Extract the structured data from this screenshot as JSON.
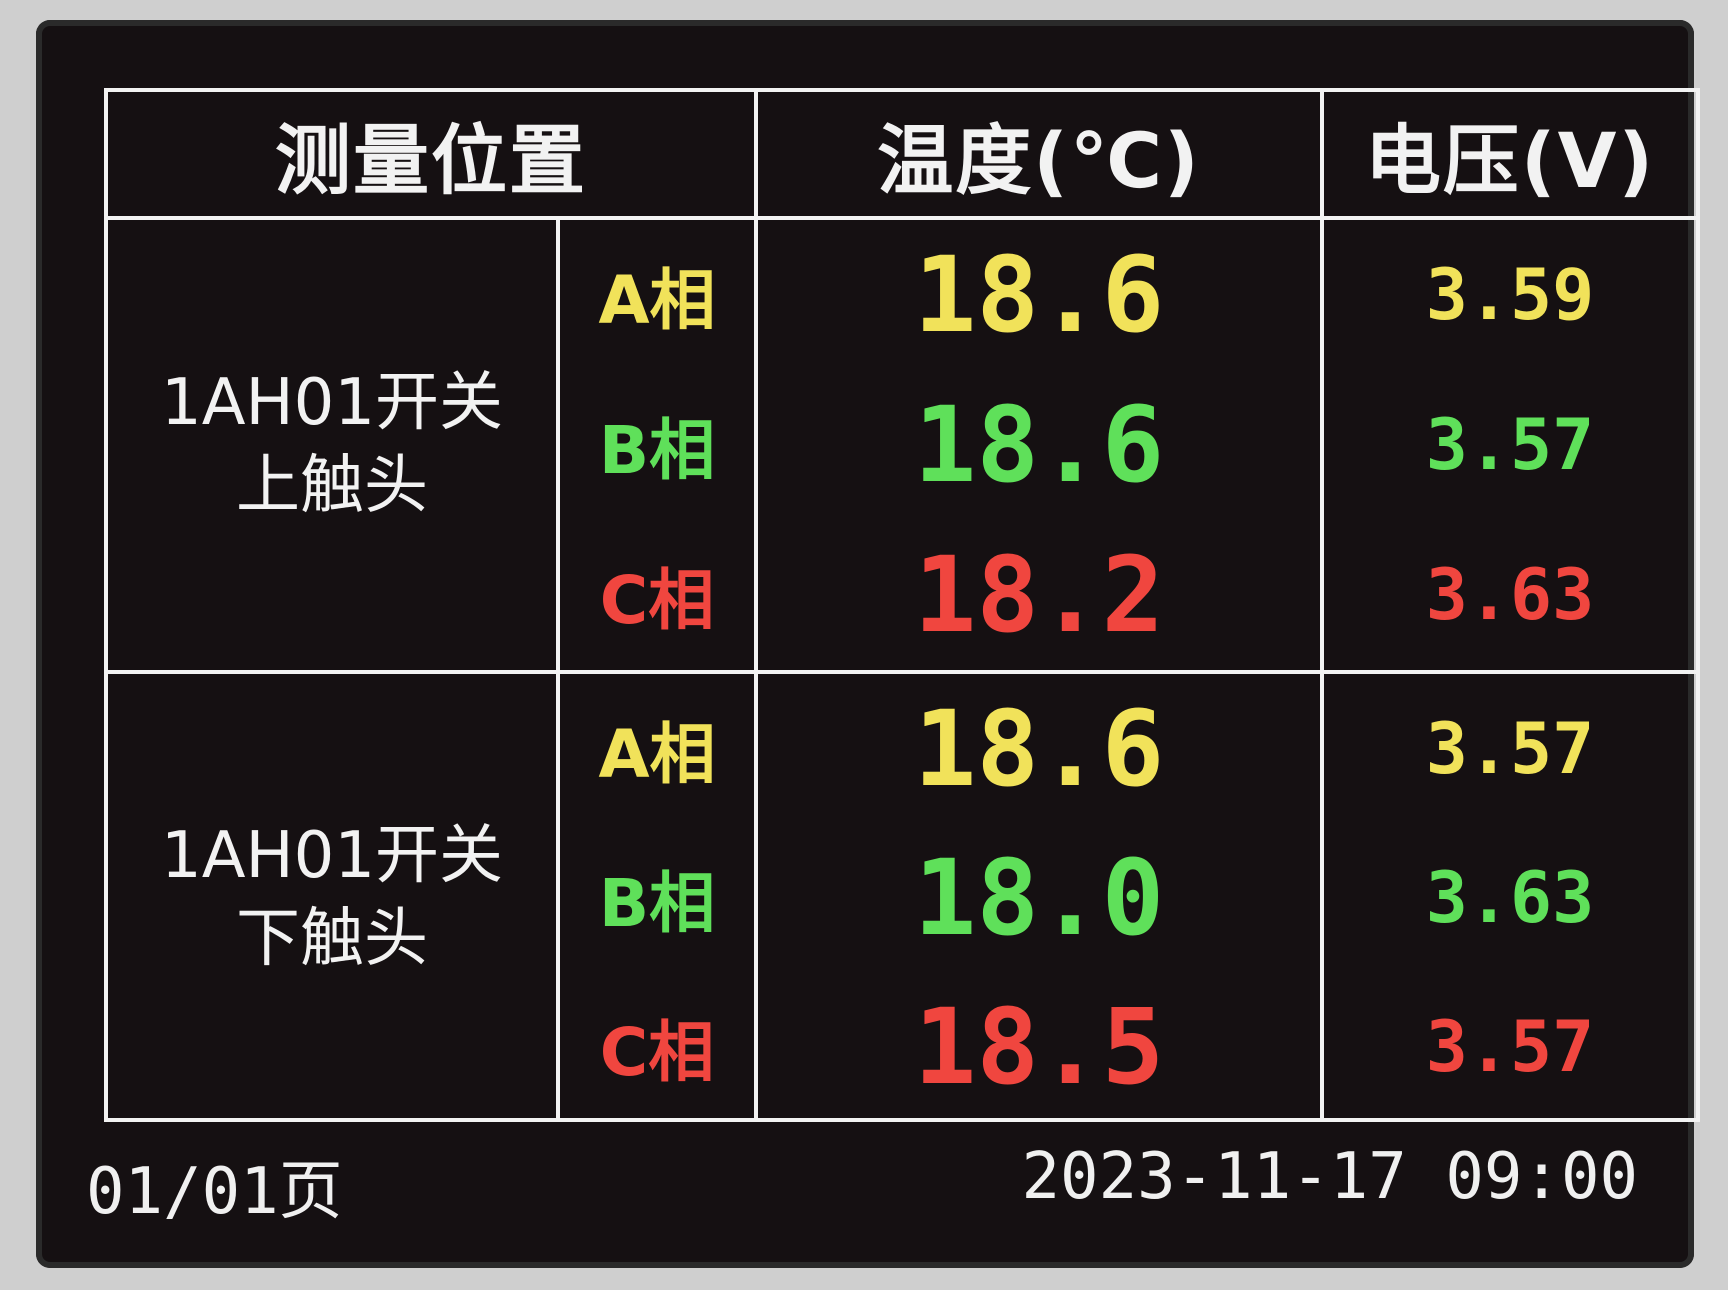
{
  "header": {
    "location": "测量位置",
    "temperature": "温度(℃)",
    "voltage": "电压(V)"
  },
  "groups": [
    {
      "name_line1": "1AH01开关",
      "name_line2": "上触头",
      "rows": [
        {
          "phase": "A相",
          "temperature": "18.6",
          "voltage": "3.59",
          "color": "#f1e25a"
        },
        {
          "phase": "B相",
          "temperature": "18.6",
          "voltage": "3.57",
          "color": "#5fe05a"
        },
        {
          "phase": "C相",
          "temperature": "18.2",
          "voltage": "3.63",
          "color": "#f0463f"
        }
      ]
    },
    {
      "name_line1": "1AH01开关",
      "name_line2": "下触头",
      "rows": [
        {
          "phase": "A相",
          "temperature": "18.6",
          "voltage": "3.57",
          "color": "#f1e25a"
        },
        {
          "phase": "B相",
          "temperature": "18.0",
          "voltage": "3.63",
          "color": "#5fe05a"
        },
        {
          "phase": "C相",
          "temperature": "18.5",
          "voltage": "3.57",
          "color": "#f0463f"
        }
      ]
    }
  ],
  "footer": {
    "page": "01/01页",
    "datetime": "2023-11-17 09:00"
  }
}
